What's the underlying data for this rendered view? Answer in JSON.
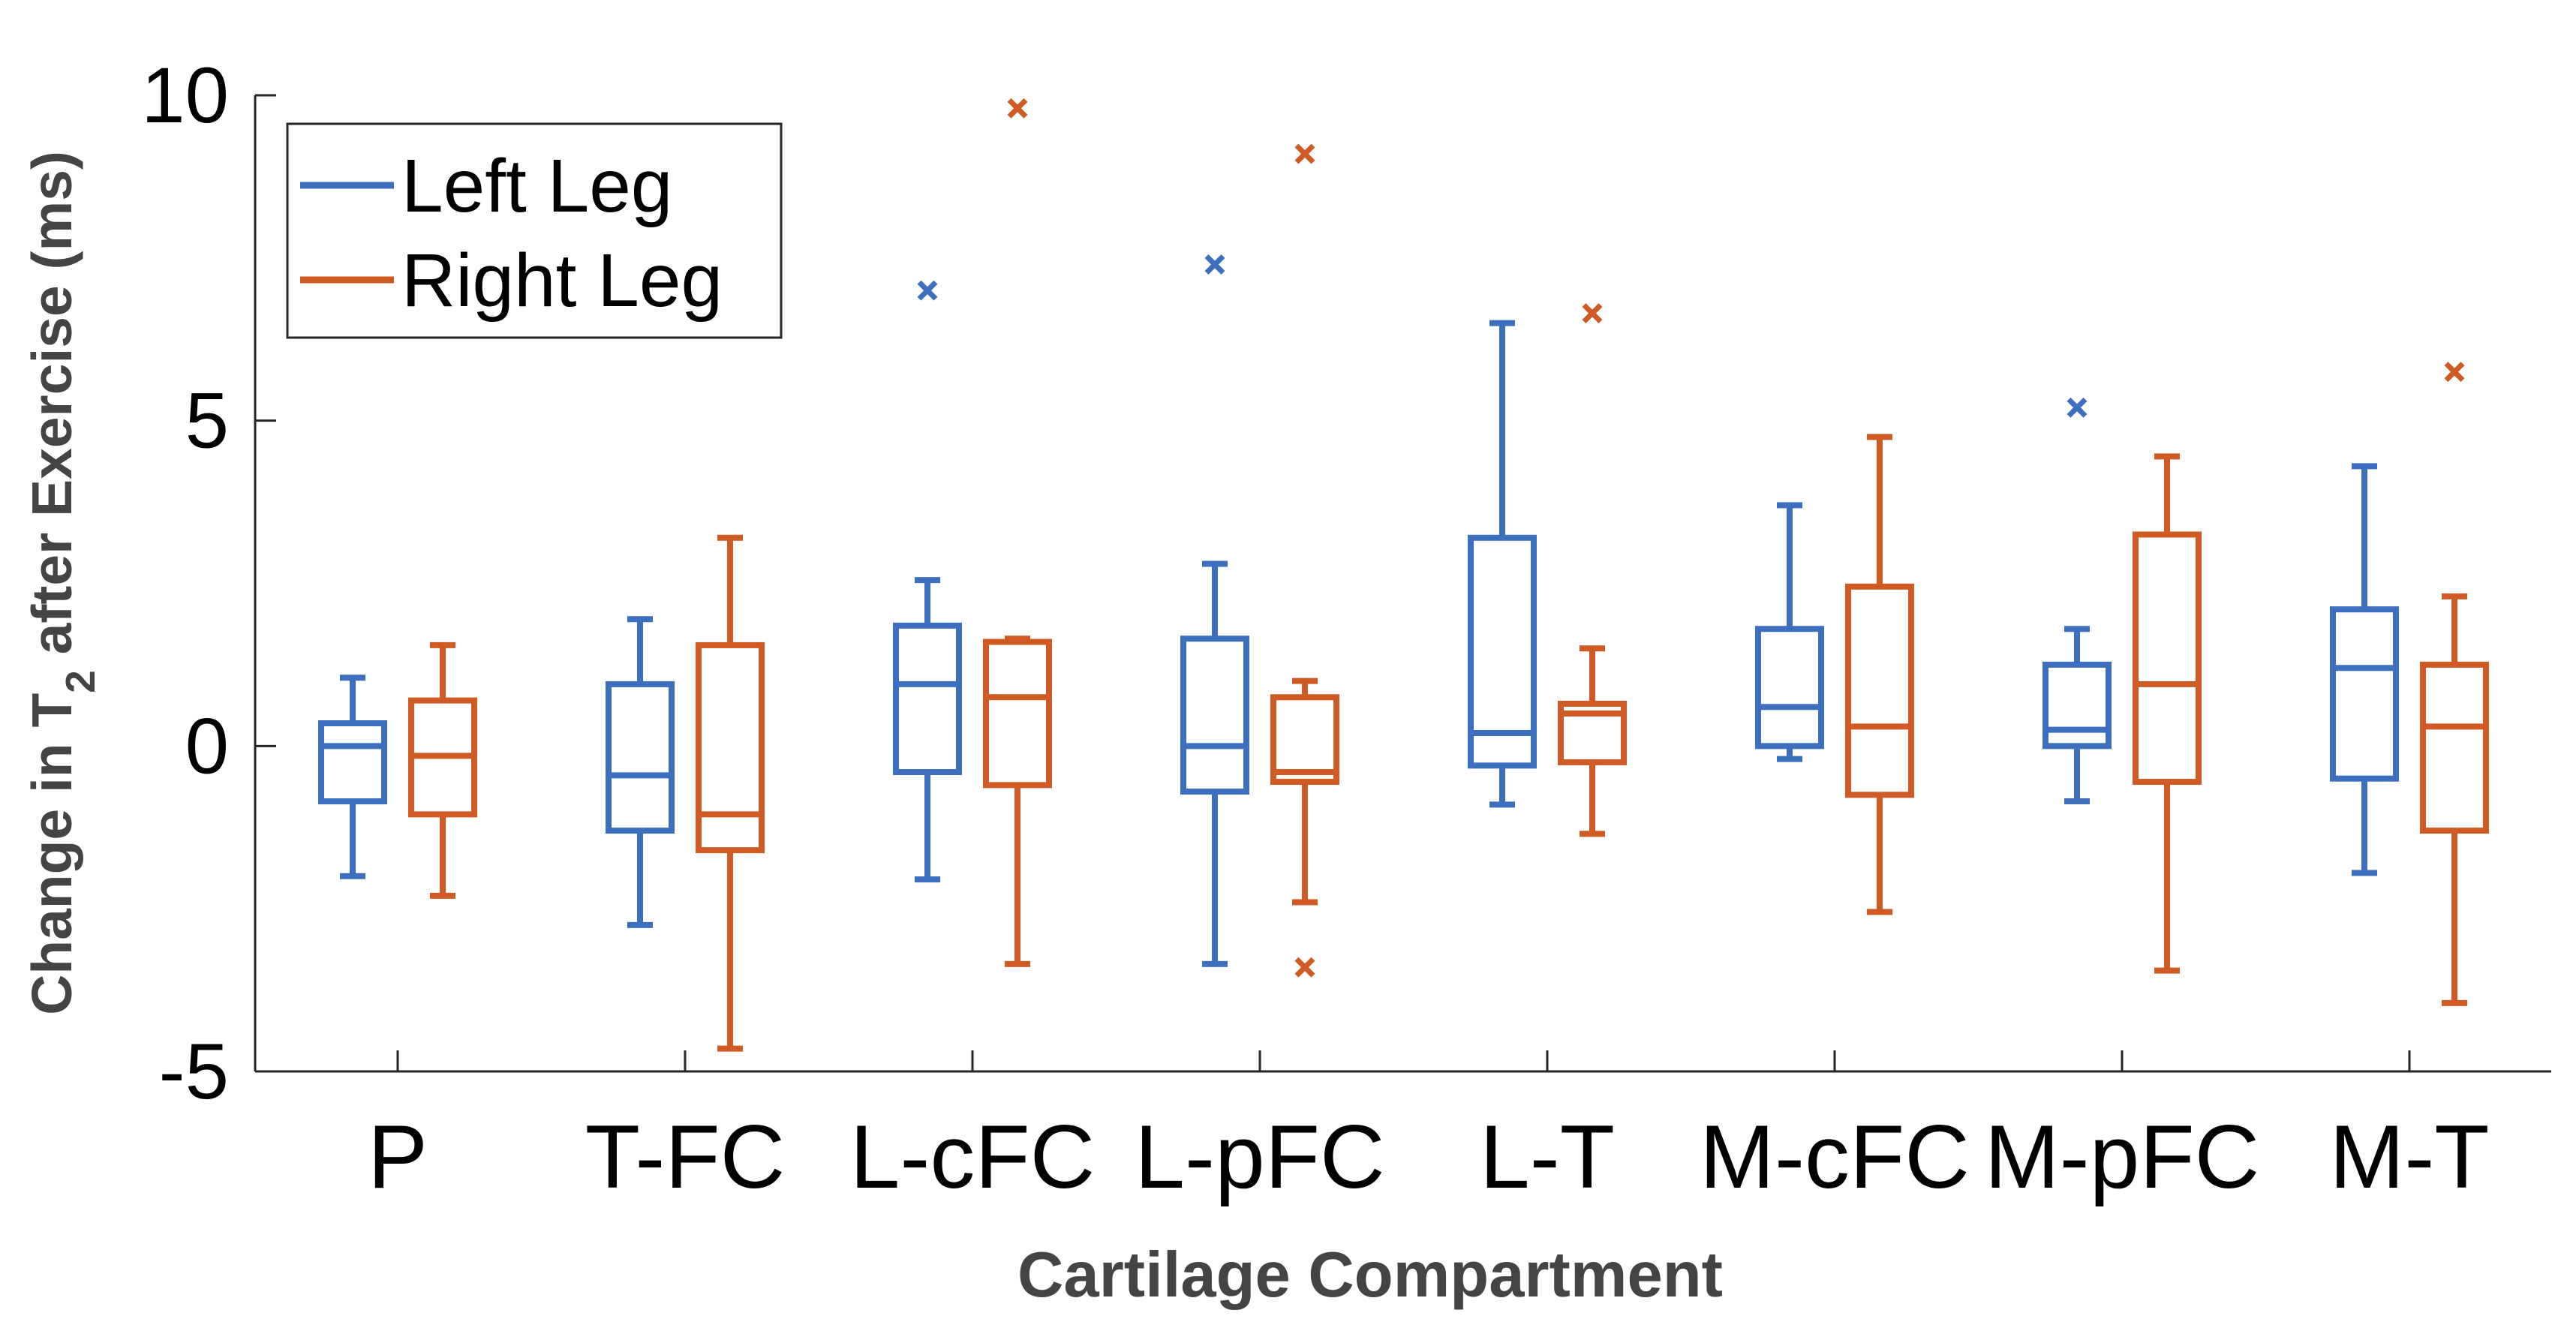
{
  "chart_data": {
    "type": "box",
    "title": "",
    "xlabel": "Cartilage Compartment",
    "ylabel_prefix": "Change in T",
    "ylabel_sub": "2",
    "ylabel_suffix": " after Exercise (ms)",
    "ylim": [
      -5,
      10
    ],
    "yticks": [
      -5,
      0,
      5,
      10
    ],
    "legend_position": "top-left",
    "categories": [
      "P",
      "T-FC",
      "L-cFC",
      "L-pFC",
      "L-T",
      "M-cFC",
      "M-pFC",
      "M-T"
    ],
    "series": [
      {
        "name": "Left Leg",
        "color": "#3d6fbf",
        "boxes": [
          {
            "whisker_low": -2.0,
            "q1": -0.85,
            "median": 0.0,
            "q3": 0.35,
            "whisker_high": 1.05,
            "outliers": []
          },
          {
            "whisker_low": -2.75,
            "q1": -1.3,
            "median": -0.45,
            "q3": 0.95,
            "whisker_high": 1.95,
            "outliers": []
          },
          {
            "whisker_low": -2.05,
            "q1": -0.4,
            "median": 0.95,
            "q3": 1.85,
            "whisker_high": 2.55,
            "outliers": [
              7.0
            ]
          },
          {
            "whisker_low": -3.35,
            "q1": -0.7,
            "median": 0.0,
            "q3": 1.65,
            "whisker_high": 2.8,
            "outliers": [
              7.4
            ]
          },
          {
            "whisker_low": -0.9,
            "q1": -0.3,
            "median": 0.2,
            "q3": 3.2,
            "whisker_high": 6.5,
            "outliers": []
          },
          {
            "whisker_low": -0.2,
            "q1": 0.0,
            "median": 0.6,
            "q3": 1.8,
            "whisker_high": 3.7,
            "outliers": []
          },
          {
            "whisker_low": -0.85,
            "q1": 0.0,
            "median": 0.25,
            "q3": 1.25,
            "whisker_high": 1.8,
            "outliers": [
              5.2
            ]
          },
          {
            "whisker_low": -1.95,
            "q1": -0.5,
            "median": 1.2,
            "q3": 2.1,
            "whisker_high": 4.3,
            "outliers": []
          }
        ]
      },
      {
        "name": "Right Leg",
        "color": "#cf5a24",
        "boxes": [
          {
            "whisker_low": -2.3,
            "q1": -1.05,
            "median": -0.15,
            "q3": 0.7,
            "whisker_high": 1.55,
            "outliers": []
          },
          {
            "whisker_low": -4.65,
            "q1": -1.6,
            "median": -1.05,
            "q3": 1.55,
            "whisker_high": 3.2,
            "outliers": []
          },
          {
            "whisker_low": -3.35,
            "q1": -0.6,
            "median": 0.75,
            "q3": 1.6,
            "whisker_high": 1.65,
            "outliers": [
              9.8
            ]
          },
          {
            "whisker_low": -2.4,
            "q1": -0.55,
            "median": -0.4,
            "q3": 0.75,
            "whisker_high": 1.0,
            "outliers": [
              9.1,
              -3.4
            ]
          },
          {
            "whisker_low": -1.35,
            "q1": -0.25,
            "median": 0.5,
            "q3": 0.65,
            "whisker_high": 1.5,
            "outliers": [
              6.65
            ]
          },
          {
            "whisker_low": -2.55,
            "q1": -0.75,
            "median": 0.3,
            "q3": 2.45,
            "whisker_high": 4.75,
            "outliers": []
          },
          {
            "whisker_low": -3.45,
            "q1": -0.55,
            "median": 0.95,
            "q3": 3.25,
            "whisker_high": 4.45,
            "outliers": []
          },
          {
            "whisker_low": -3.95,
            "q1": -1.3,
            "median": 0.3,
            "q3": 1.25,
            "whisker_high": 2.3,
            "outliers": [
              5.75
            ]
          }
        ]
      }
    ]
  }
}
